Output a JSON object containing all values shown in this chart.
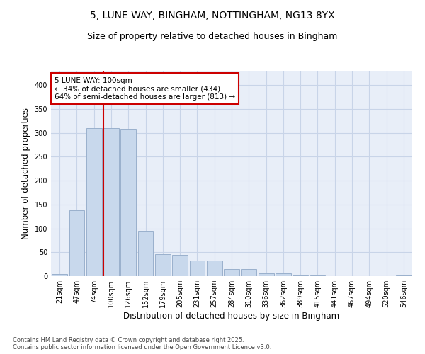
{
  "title1": "5, LUNE WAY, BINGHAM, NOTTINGHAM, NG13 8YX",
  "title2": "Size of property relative to detached houses in Bingham",
  "xlabel": "Distribution of detached houses by size in Bingham",
  "ylabel": "Number of detached properties",
  "categories": [
    "21sqm",
    "47sqm",
    "74sqm",
    "100sqm",
    "126sqm",
    "152sqm",
    "179sqm",
    "205sqm",
    "231sqm",
    "257sqm",
    "284sqm",
    "310sqm",
    "336sqm",
    "362sqm",
    "389sqm",
    "415sqm",
    "441sqm",
    "467sqm",
    "494sqm",
    "520sqm",
    "546sqm"
  ],
  "values": [
    4,
    138,
    310,
    310,
    308,
    95,
    46,
    45,
    33,
    33,
    15,
    15,
    6,
    6,
    1,
    1,
    0,
    0,
    0,
    0,
    2
  ],
  "bar_color": "#c8d8ec",
  "bar_edge_color": "#9ab0cc",
  "grid_color": "#c8d4e8",
  "background_color": "#e8eef8",
  "vline_x_index": 3,
  "vline_color": "#cc0000",
  "annotation_text": "5 LUNE WAY: 100sqm\n← 34% of detached houses are smaller (434)\n64% of semi-detached houses are larger (813) →",
  "annotation_box_color": "#cc0000",
  "ylim": [
    0,
    430
  ],
  "yticks": [
    0,
    50,
    100,
    150,
    200,
    250,
    300,
    350,
    400
  ],
  "footer": "Contains HM Land Registry data © Crown copyright and database right 2025.\nContains public sector information licensed under the Open Government Licence v3.0.",
  "title_fontsize": 10,
  "subtitle_fontsize": 9,
  "tick_fontsize": 7,
  "ylabel_fontsize": 8.5,
  "xlabel_fontsize": 8.5,
  "annotation_fontsize": 7.5
}
